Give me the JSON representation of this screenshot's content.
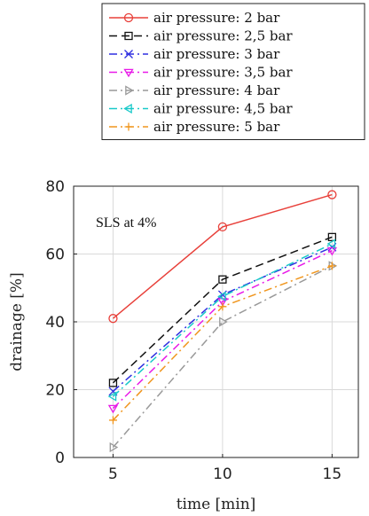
{
  "chart_data": {
    "type": "line",
    "title": "",
    "xlabel": "time [min]",
    "ylabel": "drainage [%]",
    "x": [
      5,
      10,
      15
    ],
    "xticks": [
      "5",
      "10",
      "15"
    ],
    "yticks": [
      "0",
      "20",
      "40",
      "60",
      "80"
    ],
    "xlim": [
      3.2,
      16.2
    ],
    "ylim": [
      0,
      80
    ],
    "grid": true,
    "legend_position": "top, outside above plot",
    "annotation": "SLS at 4%",
    "series": [
      {
        "name": "air pressure: 2 bar",
        "values": [
          41,
          68,
          77.5
        ],
        "color": "#e8403a",
        "dash": "solid",
        "marker": "circle"
      },
      {
        "name": "air pressure: 2,5 bar",
        "values": [
          22,
          52.5,
          65
        ],
        "color": "#111111",
        "dash": "dashed",
        "marker": "square"
      },
      {
        "name": "air pressure: 3 bar",
        "values": [
          19.5,
          48,
          62
        ],
        "color": "#2f2fe0",
        "dash": "dashdot",
        "marker": "x"
      },
      {
        "name": "air pressure: 3,5 bar",
        "values": [
          14.5,
          46,
          61
        ],
        "color": "#e81ae8",
        "dash": "dashdot",
        "marker": "triangle-down"
      },
      {
        "name": "air pressure: 4 bar",
        "values": [
          3,
          40,
          56.5
        ],
        "color": "#999999",
        "dash": "dashdot",
        "marker": "triangle-right"
      },
      {
        "name": "air pressure: 4,5 bar",
        "values": [
          18,
          47.5,
          63
        ],
        "color": "#19c9c9",
        "dash": "dashdot",
        "marker": "triangle-left"
      },
      {
        "name": "air pressure: 5 bar",
        "values": [
          11,
          44.5,
          56.5
        ],
        "color": "#f0961e",
        "dash": "dashdot",
        "marker": "plus"
      }
    ]
  }
}
